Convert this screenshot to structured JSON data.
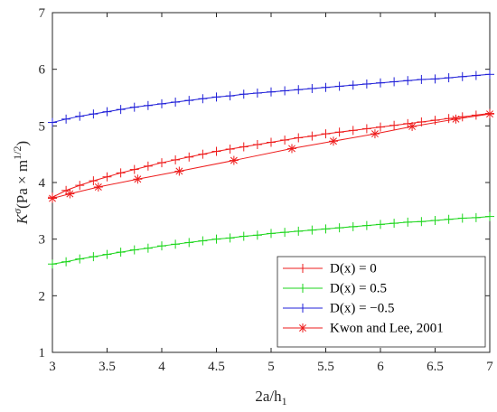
{
  "chart_data": {
    "type": "line",
    "xlabel": "2a/h",
    "xlabel_sub": "1",
    "ylabel": "K",
    "ylabel_sup": "σ",
    "ylabel_unit": "(Pa × m",
    "ylabel_unit_sup": "1/2",
    "ylabel_unit_end": ")",
    "xlim": [
      3,
      7
    ],
    "ylim": [
      1,
      7
    ],
    "x_ticks": [
      3,
      3.5,
      4,
      4.5,
      5,
      5.5,
      6,
      6.5,
      7
    ],
    "x_tick_labels": [
      "3",
      "3.5",
      "4",
      "4.5",
      "5",
      "5.5",
      "6",
      "6.5",
      "7"
    ],
    "y_ticks": [
      1,
      2,
      3,
      4,
      5,
      6,
      7
    ],
    "y_tick_labels": [
      "1",
      "2",
      "3",
      "4",
      "5",
      "6",
      "7"
    ],
    "grid": false,
    "legend_position": "bottom-right",
    "series": [
      {
        "name": "D(x) = 0",
        "legend_label": "D(x) = 0",
        "color": "#ee1c1c",
        "marker": "plus",
        "x": [
          3.0,
          3.125,
          3.25,
          3.375,
          3.5,
          3.625,
          3.75,
          3.875,
          4.0,
          4.125,
          4.25,
          4.375,
          4.5,
          4.625,
          4.75,
          4.875,
          5.0,
          5.125,
          5.25,
          5.375,
          5.5,
          5.625,
          5.75,
          5.875,
          6.0,
          6.125,
          6.25,
          6.375,
          6.5,
          6.625,
          6.75,
          6.875,
          7.0
        ],
        "y": [
          3.74,
          3.86,
          3.95,
          4.03,
          4.1,
          4.17,
          4.23,
          4.29,
          4.35,
          4.4,
          4.45,
          4.5,
          4.55,
          4.59,
          4.63,
          4.67,
          4.71,
          4.75,
          4.79,
          4.82,
          4.86,
          4.89,
          4.92,
          4.95,
          4.98,
          5.01,
          5.04,
          5.07,
          5.1,
          5.13,
          5.16,
          5.19,
          5.22
        ]
      },
      {
        "name": "D(x) = 0.5",
        "legend_label": "D(x) = 0.5",
        "color": "#1dd61d",
        "marker": "plus",
        "x": [
          3.0,
          3.125,
          3.25,
          3.375,
          3.5,
          3.625,
          3.75,
          3.875,
          4.0,
          4.125,
          4.25,
          4.375,
          4.5,
          4.625,
          4.75,
          4.875,
          5.0,
          5.125,
          5.25,
          5.375,
          5.5,
          5.625,
          5.75,
          5.875,
          6.0,
          6.125,
          6.25,
          6.375,
          6.5,
          6.625,
          6.75,
          6.875,
          7.0
        ],
        "y": [
          2.56,
          2.6,
          2.65,
          2.69,
          2.73,
          2.77,
          2.81,
          2.84,
          2.88,
          2.91,
          2.94,
          2.97,
          3.0,
          3.02,
          3.05,
          3.07,
          3.1,
          3.12,
          3.14,
          3.16,
          3.18,
          3.2,
          3.22,
          3.24,
          3.26,
          3.28,
          3.3,
          3.31,
          3.33,
          3.35,
          3.37,
          3.38,
          3.4
        ]
      },
      {
        "name": "D(x) = −0.5",
        "legend_label": "D(x) = −0.5",
        "color": "#2020d8",
        "marker": "plus",
        "x": [
          3.0,
          3.125,
          3.25,
          3.375,
          3.5,
          3.625,
          3.75,
          3.875,
          4.0,
          4.125,
          4.25,
          4.375,
          4.5,
          4.625,
          4.75,
          4.875,
          5.0,
          5.125,
          5.25,
          5.375,
          5.5,
          5.625,
          5.75,
          5.875,
          6.0,
          6.125,
          6.25,
          6.375,
          6.5,
          6.625,
          6.75,
          6.875,
          7.0
        ],
        "y": [
          5.06,
          5.12,
          5.17,
          5.21,
          5.25,
          5.29,
          5.33,
          5.36,
          5.39,
          5.42,
          5.45,
          5.48,
          5.51,
          5.53,
          5.56,
          5.58,
          5.6,
          5.62,
          5.64,
          5.66,
          5.68,
          5.7,
          5.72,
          5.74,
          5.76,
          5.78,
          5.8,
          5.82,
          5.83,
          5.85,
          5.87,
          5.89,
          5.91
        ]
      },
      {
        "name": "Kwon and Lee, 2001",
        "legend_label": "Kwon and Lee, 2001",
        "color": "#ee1c1c",
        "marker": "asterisk",
        "x": [
          3.0,
          3.16,
          3.42,
          3.78,
          4.16,
          4.66,
          5.19,
          5.57,
          5.95,
          6.29,
          6.69,
          7.0
        ],
        "y": [
          3.72,
          3.8,
          3.92,
          4.06,
          4.2,
          4.39,
          4.6,
          4.73,
          4.86,
          4.99,
          5.12,
          5.21
        ]
      }
    ]
  }
}
